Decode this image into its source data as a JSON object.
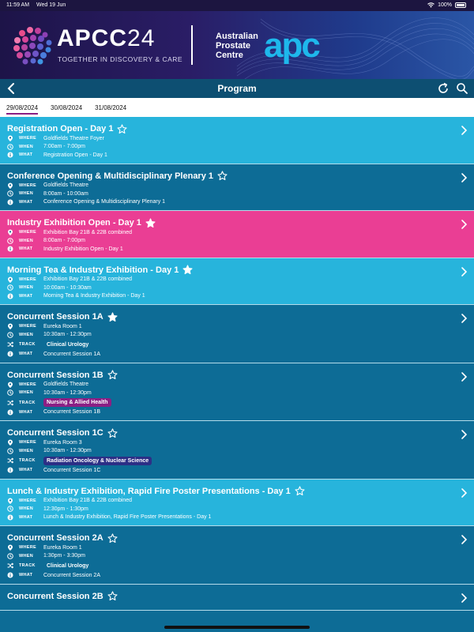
{
  "status": {
    "time": "11:59 AM",
    "date": "Wed 19 Jun",
    "battery": "100%"
  },
  "banner": {
    "event_name": "APCC",
    "event_year": "24",
    "tagline": "TOGETHER IN DISCOVERY & CARE",
    "org_line1": "Australian",
    "org_line2": "Prostate",
    "org_line3": "Centre",
    "org_logo": "apc"
  },
  "nav": {
    "title": "Program"
  },
  "tabs": [
    "29/08/2024",
    "30/08/2024",
    "31/08/2024"
  ],
  "labels": {
    "where": "WHERE",
    "when": "WHEN",
    "what": "WHAT",
    "track": "TRACK"
  },
  "colors": {
    "light": "#27b4dc",
    "dark": "#0d6c96",
    "pink": "#ea3e94",
    "nursing": "#8b1f84",
    "radiation": "#2c2f86",
    "urology": "#0d6c96"
  },
  "sessions": [
    {
      "title": "Registration Open - Day 1",
      "starred": false,
      "color": "light",
      "where": "Goldfields Theatre Foyer",
      "when": "7:00am - 7:00pm",
      "what": "Registration Open - Day 1"
    },
    {
      "title": "Conference Opening & Multidisciplinary Plenary 1",
      "starred": false,
      "color": "dark",
      "where": "Goldfields Theatre",
      "when": "8:00am - 10:00am",
      "what": "Conference Opening & Multidisciplinary Plenary 1"
    },
    {
      "title": "Industry Exhibition Open - Day 1",
      "starred": true,
      "color": "pink",
      "where": "Exhibition Bay 21B & 22B combined",
      "when": "8:00am - 7:00pm",
      "what": "Industry Exhibition Open - Day 1"
    },
    {
      "title": "Morning Tea & Industry Exhibition - Day 1",
      "starred": true,
      "color": "light",
      "where": "Exhibition Bay 21B & 22B combined",
      "when": "10:00am - 10:30am",
      "what": "Morning Tea & Industry Exhibition - Day 1"
    },
    {
      "title": "Concurrent Session 1A",
      "starred": true,
      "color": "dark",
      "where": "Eureka Room 1",
      "when": "10:30am - 12:30pm",
      "track": "Clinical Urology",
      "track_color": "urology",
      "what": "Concurrent Session 1A"
    },
    {
      "title": "Concurrent Session 1B",
      "starred": false,
      "color": "dark",
      "where": "Goldfields Theatre",
      "when": "10:30am - 12:30pm",
      "track": "Nursing & Allied Health",
      "track_color": "nursing",
      "what": "Concurrent Session 1B"
    },
    {
      "title": "Concurrent Session 1C",
      "starred": false,
      "color": "dark",
      "where": "Eureka Room 3",
      "when": "10:30am - 12:30pm",
      "track": "Radiation Oncology & Nuclear Science",
      "track_color": "radiation",
      "what": "Concurrent Session 1C"
    },
    {
      "title": "Lunch & Industry Exhibition, Rapid Fire Poster Presentations - Day 1",
      "starred": false,
      "color": "light",
      "where": "Exhibition Bay 21B & 22B combined",
      "when": "12:30pm - 1:30pm",
      "what": "Lunch & Industry Exhibition, Rapid Fire Poster Presentations - Day 1"
    },
    {
      "title": "Concurrent Session 2A",
      "starred": false,
      "color": "dark",
      "where": "Eureka Room 1",
      "when": "1:30pm - 3:30pm",
      "track": "Clinical Urology",
      "track_color": "urology",
      "what": "Concurrent Session 2A"
    },
    {
      "title": "Concurrent Session 2B",
      "starred": false,
      "color": "dark"
    }
  ],
  "icons": {
    "back": "chevron-left-icon",
    "refresh": "refresh-icon",
    "search": "search-icon",
    "where": "location-pin-icon",
    "when": "clock-icon",
    "track": "shuffle-icon",
    "what": "info-icon",
    "star": "star-icon",
    "chevron": "chevron-right-icon"
  }
}
